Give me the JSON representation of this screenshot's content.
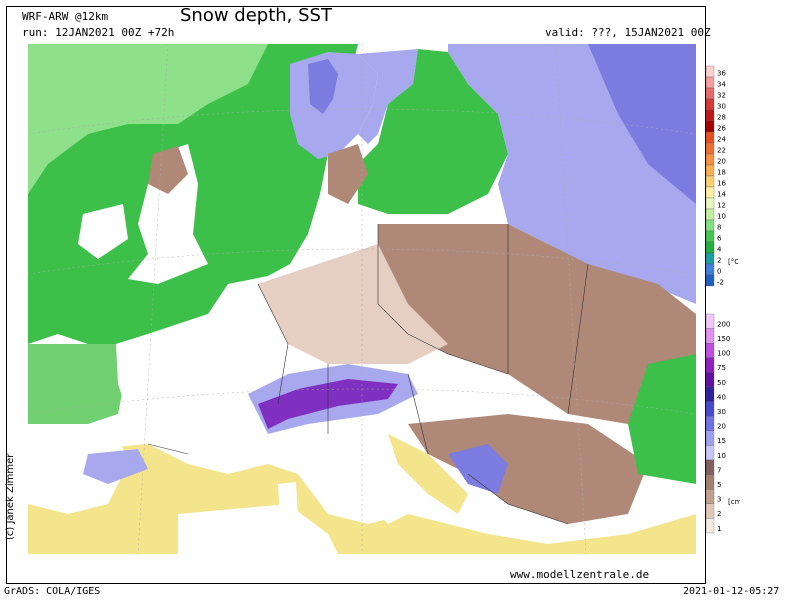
{
  "header": {
    "model": "WRF-ARW @12km",
    "title": "Snow depth, SST",
    "run": "run: 12JAN2021 00Z +72h",
    "valid": "valid: ???, 15JAN2021 00Z"
  },
  "footer": {
    "website": "www.modellzentrale.de",
    "software": "GrADS: COLA/IGES",
    "timestamp": "2021-01-12-05:27",
    "copyright": "(c) Janek Zimmer"
  },
  "legend_sst": {
    "unit": "[°C]",
    "ticks": [
      "36",
      "34",
      "32",
      "30",
      "28",
      "26",
      "24",
      "22",
      "20",
      "18",
      "16",
      "14",
      "12",
      "10",
      "8",
      "6",
      "4",
      "2",
      "0",
      "-2"
    ],
    "colors": [
      "#ffd0d0",
      "#f4a0a0",
      "#e86a6a",
      "#d83838",
      "#c01818",
      "#a80000",
      "#e85020",
      "#f07030",
      "#f89040",
      "#f8b050",
      "#f8d070",
      "#fff0a0",
      "#e8f8c0",
      "#c0f0a0",
      "#80e080",
      "#40c850",
      "#20b040",
      "#18a0a0",
      "#4080e0",
      "#2060c0"
    ]
  },
  "legend_snow": {
    "unit": "[cm]",
    "ticks": [
      "200",
      "150",
      "100",
      "75",
      "50",
      "40",
      "30",
      "20",
      "15",
      "10",
      "7",
      "5",
      "3",
      "2",
      "1"
    ],
    "colors": [
      "#f0c8f8",
      "#e090f0",
      "#c050e0",
      "#9020c0",
      "#6010a0",
      "#3020a0",
      "#4848d0",
      "#7070e8",
      "#a0a0f0",
      "#c8c8f8",
      "#806060",
      "#a08070",
      "#c0a090",
      "#e0c8b8",
      "#f4ece4"
    ]
  },
  "map_colors": {
    "sea_green": "#3cc04a",
    "sea_light_green": "#8fe08a",
    "sea_yellow": "#f4e48c",
    "sea_cyan": "#3fbf8a",
    "land_bare": "#ffffff",
    "snow_brown": "#b08878",
    "snow_light_brown": "#e4cfc2",
    "snow_violet": "#a8a8ee",
    "snow_blue": "#7c7ce0",
    "snow_purple": "#8030c0"
  }
}
